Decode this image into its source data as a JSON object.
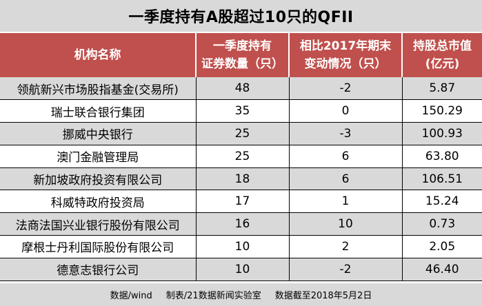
{
  "title": "一季度持有A股超过10只的QFII",
  "headers": {
    "col1": "机构名称",
    "col2_line1": "一季度持有",
    "col2_line2": "证券数量（只）",
    "col3_line1": "相比2017年期末",
    "col3_line2": "变动情况（只）",
    "col4_line1": "持股总市值",
    "col4_line2": "(亿元)"
  },
  "rows": [
    {
      "name": "领航新兴市场股指基金(交易所)",
      "count": "48",
      "change": "-2",
      "value": "5.87"
    },
    {
      "name": "瑞士联合银行集团",
      "count": "35",
      "change": "0",
      "value": "150.29"
    },
    {
      "name": "挪威中央银行",
      "count": "25",
      "change": "-3",
      "value": "100.93"
    },
    {
      "name": "澳门金融管理局",
      "count": "25",
      "change": "6",
      "value": "63.80"
    },
    {
      "name": "新加坡政府投资有限公司",
      "count": "18",
      "change": "6",
      "value": "106.51"
    },
    {
      "name": "科威特政府投资局",
      "count": "17",
      "change": "1",
      "value": "15.24"
    },
    {
      "name": "法商法国兴业银行股份有限公司",
      "count": "16",
      "change": "10",
      "value": "0.73"
    },
    {
      "name": "摩根士丹利国际股份有限公司",
      "count": "10",
      "change": "2",
      "value": "2.05"
    },
    {
      "name": "德意志银行公司",
      "count": "10",
      "change": "-2",
      "value": "46.40"
    }
  ],
  "footer": {
    "source": "数据/wind",
    "maker": "制表/21数据新闻实验室",
    "cutoff": "数据截至2018年5月2日"
  }
}
